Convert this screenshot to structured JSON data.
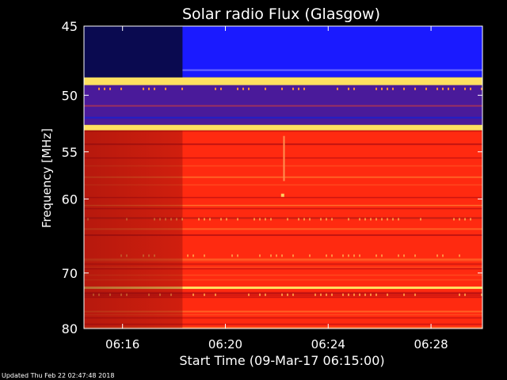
{
  "footer": "Updated Thu Feb 22 02:47:48 2018",
  "chart_data": {
    "type": "heatmap",
    "title": "Solar radio Flux (Glasgow)",
    "xlabel": "Start Time (09-Mar-17 06:15:00)",
    "ylabel": "Frequency [MHz]",
    "x_range_minutes": [
      "06:14.5",
      "06:30.0"
    ],
    "xlim": [
      "06:14:30",
      "06:30:00"
    ],
    "x_ticks": [
      "06:16",
      "06:20",
      "06:24",
      "06:28"
    ],
    "ylim": [
      45,
      80
    ],
    "y_ticks": [
      45,
      50,
      55,
      60,
      70,
      80
    ],
    "y_scale": "reciprocal",
    "colormap": "blue-red-yellow",
    "colors": {
      "low": "#1a1aff",
      "mid": "#ff2a10",
      "high": "#ffe060",
      "dim": "#a01010"
    },
    "bands": [
      {
        "from_mhz": 45,
        "to_mhz": 48.6,
        "level": "low"
      },
      {
        "from_mhz": 48.6,
        "to_mhz": 49.2,
        "level": "high"
      },
      {
        "from_mhz": 49.2,
        "to_mhz": 52.5,
        "level": "low-mid"
      },
      {
        "from_mhz": 52.5,
        "to_mhz": 53.0,
        "level": "high"
      },
      {
        "from_mhz": 53.0,
        "to_mhz": 80,
        "level": "mid"
      },
      {
        "from_mhz": 72.2,
        "to_mhz": 72.6,
        "level": "high"
      }
    ],
    "data_gap_before": "06:18:20"
  }
}
